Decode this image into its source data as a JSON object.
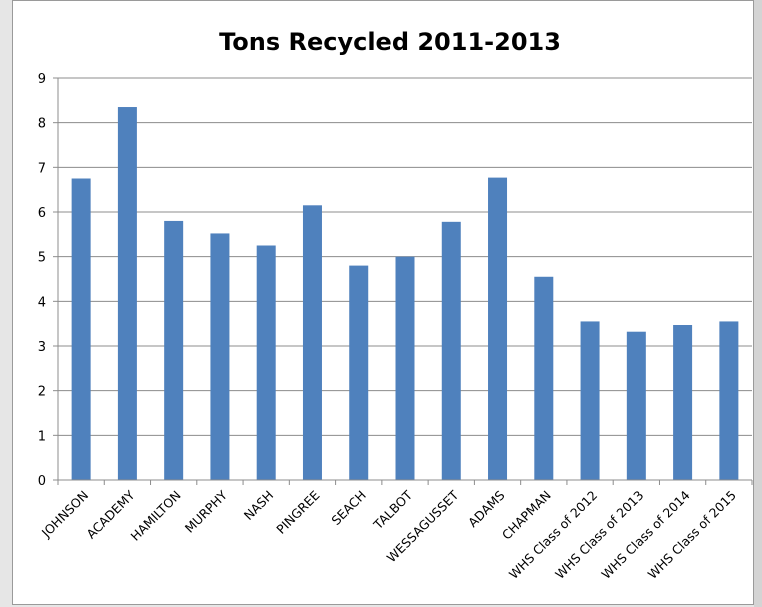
{
  "chart_data": {
    "type": "bar",
    "title": "Tons Recycled 2011-2013",
    "xlabel": "",
    "ylabel": "",
    "ylim": [
      0,
      9
    ],
    "yticks": [
      "0",
      "1",
      "2",
      "3",
      "4",
      "5",
      "6",
      "7",
      "8",
      "9"
    ],
    "categories": [
      "JOHNSON",
      "ACADEMY",
      "HAMILTON",
      "MURPHY",
      "NASH",
      "PINGREE",
      "SEACH",
      "TALBOT",
      "WESSAGUSSET",
      "ADAMS",
      "CHAPMAN",
      "WHS Class of 2012",
      "WHS Class of 2013",
      "WHS Class of 2014",
      "WHS Class of 2015"
    ],
    "values": [
      6.75,
      8.35,
      5.8,
      5.52,
      5.25,
      6.15,
      4.8,
      5.0,
      5.78,
      6.77,
      4.55,
      3.55,
      3.32,
      3.47,
      3.55
    ],
    "grid": true,
    "legend": "none",
    "bar_color": "#4f81bd"
  }
}
